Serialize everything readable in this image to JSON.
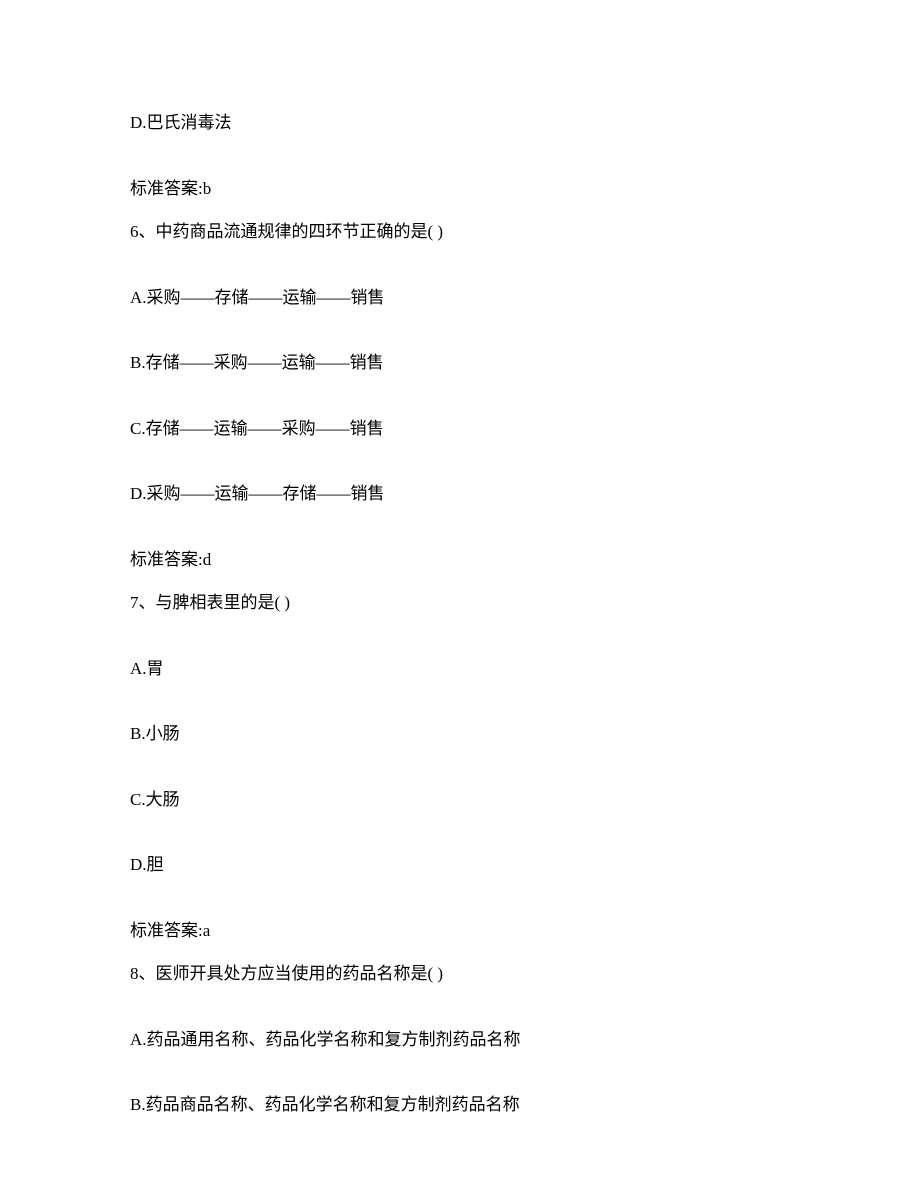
{
  "page": {
    "font_family": "SimSun",
    "font_size": 17,
    "text_color": "#000000",
    "background_color": "#ffffff"
  },
  "items": {
    "prev_option_d": "D.巴氏消毒法",
    "prev_answer": "标准答案:b",
    "q6": {
      "question": "6、中药商品流通规律的四环节正确的是( )",
      "options": {
        "a": "A.采购——存储——运输——销售",
        "b": "B.存储——采购——运输——销售",
        "c": "C.存储——运输——采购——销售",
        "d": "D.采购——运输——存储——销售"
      },
      "answer": "标准答案:d"
    },
    "q7": {
      "question": "7、与脾相表里的是( )",
      "options": {
        "a": "A.胃",
        "b": "B.小肠",
        "c": "C.大肠",
        "d": "D.胆"
      },
      "answer": "标准答案:a"
    },
    "q8": {
      "question": "8、医师开具处方应当使用的药品名称是( )",
      "options": {
        "a": "A.药品通用名称、药品化学名称和复方制剂药品名称",
        "b": "B.药品商品名称、药品化学名称和复方制剂药品名称"
      }
    }
  }
}
